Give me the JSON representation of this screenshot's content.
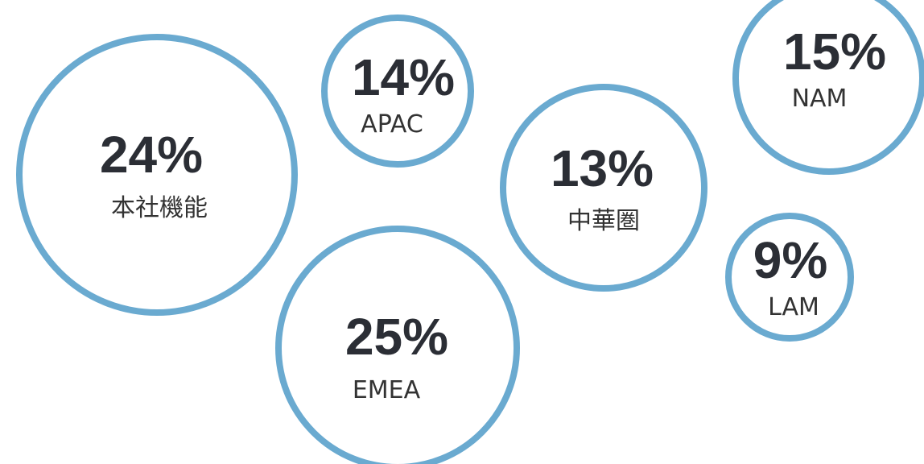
{
  "chart_data": {
    "type": "bubble",
    "categories": [
      "本社機能",
      "APAC",
      "中華圏",
      "NAM",
      "LAM",
      "EMEA"
    ],
    "values": [
      24,
      14,
      13,
      15,
      9,
      25
    ],
    "value_labels": [
      "24%",
      "14%",
      "13%",
      "15%",
      "9%",
      "25%"
    ],
    "color": "#6aaad0"
  }
}
